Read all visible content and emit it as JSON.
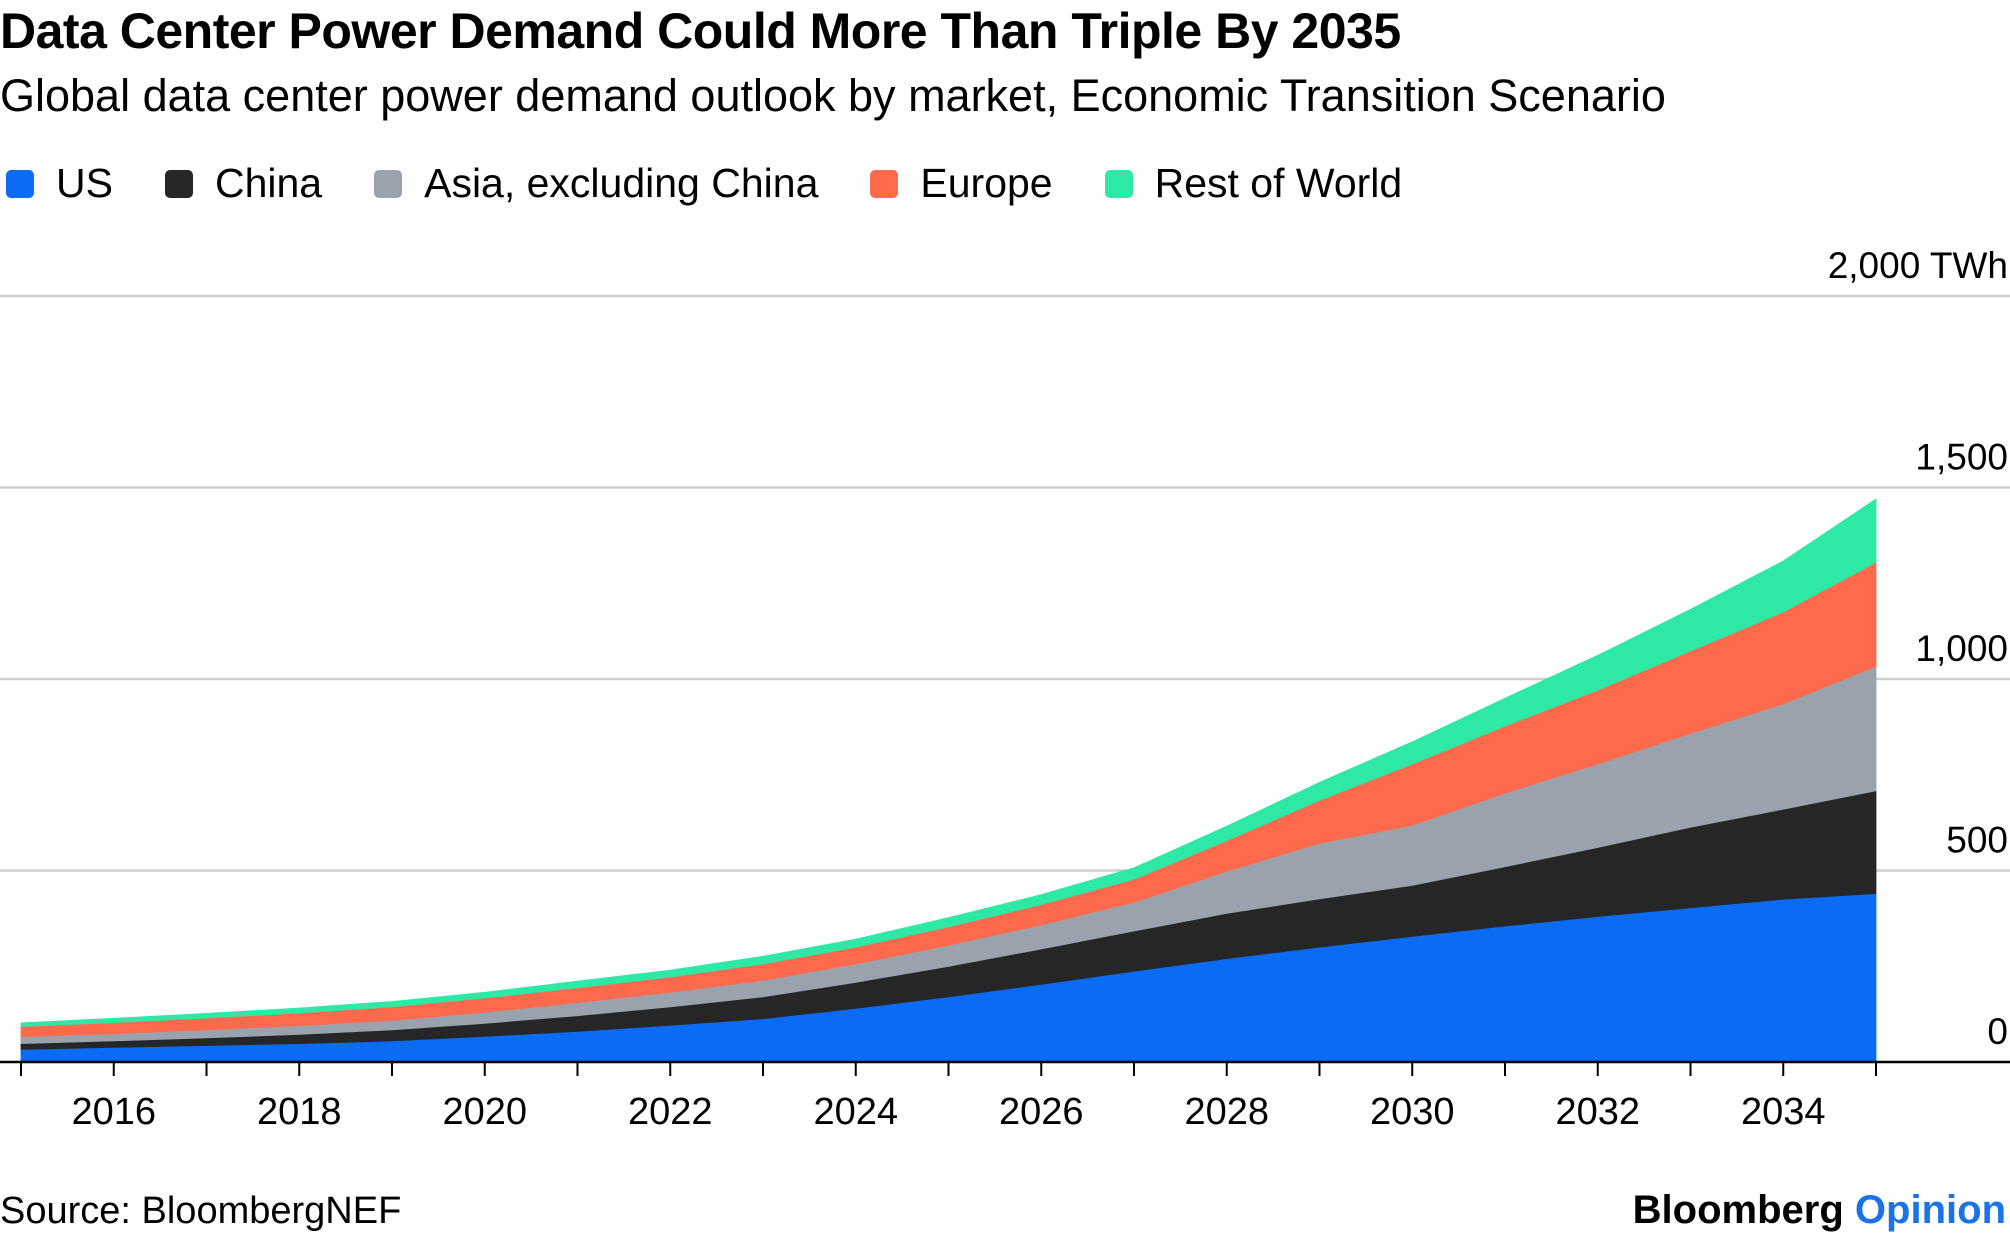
{
  "header": {
    "title": "Data Center Power Demand Could More Than Triple By 2035",
    "subtitle": "Global data center power demand outlook by market, Economic Transition Scenario"
  },
  "footer": {
    "source": "Source: BloombergNEF",
    "brand_primary": "Bloomberg",
    "brand_secondary": "Opinion"
  },
  "chart_data": {
    "type": "area",
    "stacked": true,
    "title": "Data Center Power Demand Could More Than Triple By 2035",
    "subtitle": "Global data center power demand outlook by market, Economic Transition Scenario",
    "x": [
      2015,
      2016,
      2017,
      2018,
      2019,
      2020,
      2021,
      2022,
      2023,
      2024,
      2025,
      2026,
      2027,
      2028,
      2029,
      2030,
      2031,
      2032,
      2033,
      2034,
      2035
    ],
    "x_tick_labels": [
      "2016",
      "2018",
      "2020",
      "2022",
      "2024",
      "2026",
      "2028",
      "2030",
      "2032",
      "2034"
    ],
    "x_tick_values": [
      2016,
      2018,
      2020,
      2022,
      2024,
      2026,
      2028,
      2030,
      2032,
      2034
    ],
    "ylim": [
      0,
      2000
    ],
    "y_ticks": [
      0,
      500,
      1000,
      1500,
      2000
    ],
    "y_tick_labels": [
      "0",
      "500",
      "1,000",
      "1,500",
      "2,000 TWh"
    ],
    "y_unit": "TWh",
    "legend_position": "top-left",
    "series": [
      {
        "name": "US",
        "color": "#0a6cf5",
        "values": [
          33,
          38,
          43,
          48,
          55,
          67,
          80,
          96,
          113,
          140,
          170,
          203,
          237,
          270,
          300,
          328,
          355,
          380,
          403,
          425,
          440
        ]
      },
      {
        "name": "China",
        "color": "#262626",
        "values": [
          15,
          17,
          20,
          24,
          29,
          34,
          41,
          48,
          57,
          68,
          80,
          92,
          105,
          118,
          126,
          133,
          155,
          180,
          210,
          235,
          268
        ]
      },
      {
        "name": "Asia, excluding China",
        "color": "#9aa3ad",
        "values": [
          18,
          19,
          21,
          23,
          25,
          29,
          34,
          38,
          43,
          48,
          55,
          63,
          75,
          110,
          145,
          157,
          192,
          218,
          245,
          275,
          325
        ]
      },
      {
        "name": "Europe",
        "color": "#ff6a4d",
        "values": [
          27,
          29,
          31,
          33,
          35,
          37,
          39,
          40,
          43,
          44,
          48,
          53,
          60,
          80,
          112,
          160,
          175,
          193,
          215,
          240,
          272
        ]
      },
      {
        "name": "Rest of World",
        "color": "#2ee8a5",
        "values": [
          9,
          11,
          12,
          13,
          14,
          15,
          17,
          18,
          20,
          21,
          24,
          26,
          30,
          38,
          47,
          58,
          73,
          91,
          109,
          133,
          165
        ]
      }
    ]
  }
}
